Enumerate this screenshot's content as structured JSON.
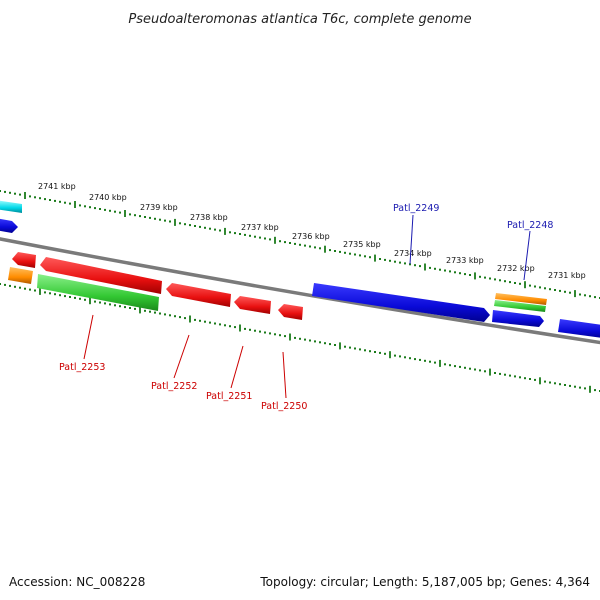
{
  "title": "Pseudoalteromonas atlantica T6c, complete genome",
  "footer": {
    "accession": "Accession: NC_008228",
    "summary": "Topology: circular; Length: 5,187,005 bp; Genes: 4,364"
  },
  "colors": {
    "backbone": "#7a7a7a",
    "ticks": "#1a7a1a",
    "forward_gene": "#1010e0",
    "reverse_gene": "#ee1111",
    "rna_gene": "#00d8e8",
    "cds_orange": "#ff8c00",
    "cds_green": "#33cc33",
    "forward_label": "#1a1ab0",
    "reverse_label": "#cc0000"
  },
  "kbp_labels": [
    "2741 kbp",
    "2740 kbp",
    "2739 kbp",
    "2738 kbp",
    "2737 kbp",
    "2736 kbp",
    "2735 kbp",
    "2734 kbp",
    "2733 kbp",
    "2732 kbp",
    "2731 kbp"
  ],
  "gene_labels": {
    "forward": [
      "Patl_2249",
      "Patl_2248"
    ],
    "reverse": [
      "Patl_2253",
      "Patl_2252",
      "Patl_2251",
      "Patl_2250"
    ]
  }
}
